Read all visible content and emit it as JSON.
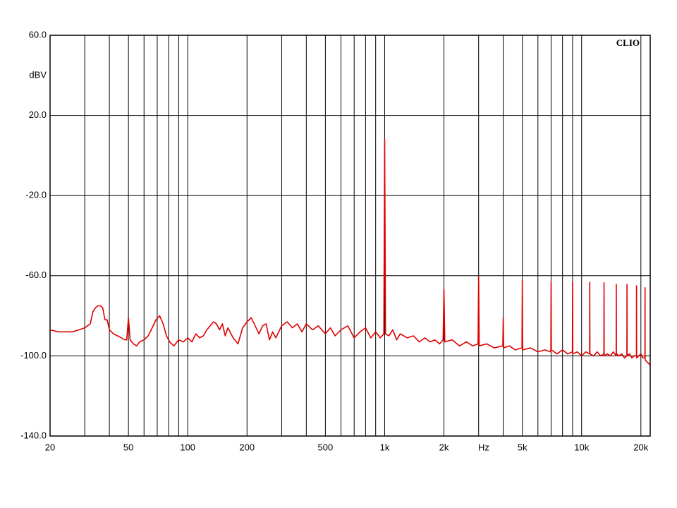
{
  "chart_data": {
    "type": "line",
    "annotation": "CLIO",
    "xlabel": "Hz",
    "ylabel": "dBV",
    "xscale": "log",
    "grid": true,
    "xlim": [
      20,
      22300
    ],
    "ylim": [
      -140,
      60
    ],
    "xticks": [
      20,
      50,
      100,
      200,
      500,
      {
        "value": 1000,
        "label": "1k"
      },
      {
        "value": 2000,
        "label": "2k"
      },
      {
        "value": 5000,
        "label": "5k"
      },
      {
        "value": 10000,
        "label": "10k"
      },
      {
        "value": 20000,
        "label": "20k"
      }
    ],
    "xminor": [
      30,
      40,
      60,
      70,
      80,
      90,
      300,
      400,
      600,
      700,
      800,
      900,
      3000,
      4000,
      6000,
      7000,
      8000,
      9000
    ],
    "yticks": [
      {
        "value": 60,
        "label": "60.0"
      },
      {
        "value": 20,
        "label": "20.0"
      },
      {
        "value": -20,
        "label": "-20.0"
      },
      {
        "value": -60,
        "label": "-60.0"
      },
      {
        "value": -100,
        "label": "-100.0"
      },
      {
        "value": -140,
        "label": "-140.0"
      }
    ],
    "series": [
      {
        "color": "#e00000",
        "x": [
          20,
          22,
          24,
          26,
          28,
          30,
          31,
          32,
          33,
          34,
          35,
          36,
          37,
          38,
          39,
          40,
          42,
          44,
          46,
          48,
          49,
          50,
          51,
          53,
          55,
          57,
          60,
          63,
          66,
          69,
          72,
          75,
          78,
          81,
          85,
          90,
          95,
          100,
          105,
          110,
          115,
          120,
          125,
          130,
          135,
          140,
          145,
          150,
          155,
          160,
          170,
          180,
          190,
          200,
          210,
          220,
          230,
          240,
          250,
          260,
          270,
          280,
          300,
          320,
          340,
          360,
          380,
          400,
          430,
          460,
          500,
          530,
          560,
          600,
          650,
          700,
          750,
          800,
          850,
          900,
          950,
          990,
          1000,
          1010,
          1050,
          1100,
          1150,
          1200,
          1300,
          1400,
          1500,
          1600,
          1700,
          1800,
          1900,
          1980,
          2000,
          2020,
          2200,
          2400,
          2600,
          2800,
          2980,
          3000,
          3020,
          3300,
          3600,
          3980,
          4000,
          4020,
          4300,
          4600,
          4980,
          5000,
          5020,
          5500,
          6000,
          6500,
          6980,
          7000,
          7020,
          7500,
          8000,
          8500,
          8980,
          9000,
          9020,
          9500,
          10000,
          10500,
          10980,
          11000,
          11020,
          11500,
          12000,
          12500,
          12980,
          13000,
          13020,
          13500,
          14000,
          14500,
          14980,
          15000,
          15020,
          15500,
          16000,
          16500,
          16980,
          17000,
          17020,
          17500,
          18000,
          18500,
          18980,
          19000,
          19020,
          19500,
          20000,
          20500,
          20980,
          21000,
          21020,
          21500,
          22000,
          22300
        ],
        "values": [
          -87,
          -88,
          -88,
          -88,
          -87,
          -86,
          -85,
          -84,
          -78,
          -76,
          -75,
          -75,
          -76,
          -82,
          -82,
          -87,
          -89,
          -90,
          -91,
          -92,
          -92,
          -81,
          -92,
          -94,
          -95,
          -93,
          -92,
          -90,
          -86,
          -82,
          -80,
          -84,
          -90,
          -93,
          -95,
          -92,
          -93,
          -91,
          -93,
          -89,
          -91,
          -90,
          -87,
          -85,
          -83,
          -84,
          -87,
          -84,
          -90,
          -86,
          -91,
          -94,
          -86,
          -83,
          -81,
          -85,
          -89,
          -85,
          -84,
          -92,
          -88,
          -91,
          -85,
          -83,
          -86,
          -84,
          -88,
          -84,
          -87,
          -85,
          -89,
          -86,
          -90,
          -87,
          -85,
          -91,
          -88,
          -86,
          -91,
          -88,
          -91,
          -89,
          8.2,
          -89,
          -90,
          -87,
          -92,
          -89,
          -91,
          -90,
          -93,
          -91,
          -93,
          -92,
          -94,
          -92,
          -66.8,
          -93,
          -92,
          -95,
          -93,
          -95,
          -94,
          -60.4,
          -95,
          -94,
          -96,
          -95,
          -80.8,
          -96,
          -95,
          -97,
          -96,
          -62.2,
          -97,
          -96,
          -98,
          -97,
          -98,
          -62.9,
          -97,
          -99,
          -97,
          -99,
          -98,
          -63,
          -99,
          -98,
          -100,
          -98,
          -99,
          -63.2,
          -99,
          -100,
          -98,
          -100,
          -99,
          -63.5,
          -100,
          -99,
          -100,
          -98,
          -100,
          -64.3,
          -99,
          -100,
          -99,
          -101,
          -100,
          -64.3,
          -100,
          -99,
          -101,
          -100,
          -100,
          -65,
          -101,
          -100,
          -99,
          -101,
          -101,
          -66,
          -102,
          -103,
          -104,
          -105
        ]
      }
    ]
  }
}
